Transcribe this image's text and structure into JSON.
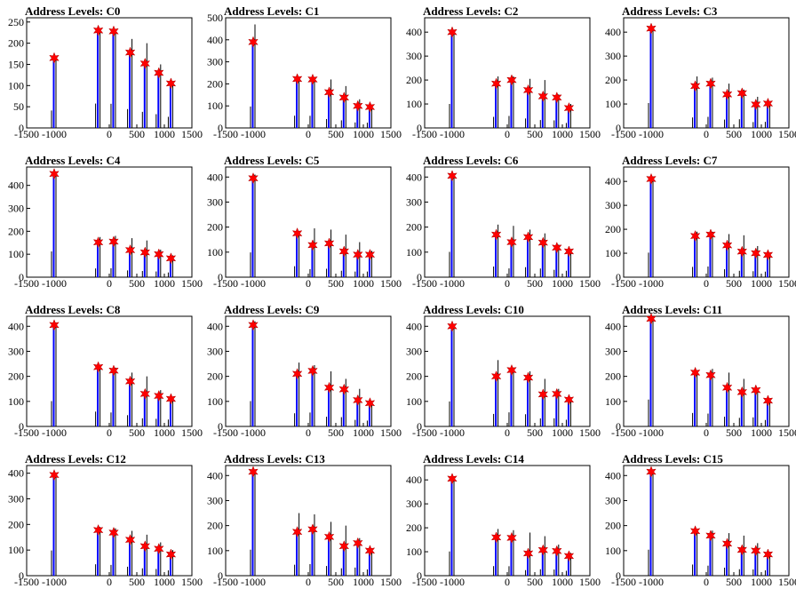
{
  "colors": {
    "spike": "#0000ff",
    "baseline_spike": "#000000",
    "marker": "#ff0000"
  },
  "chart_data": [
    {
      "type": "bar",
      "title": "Address Levels: C0",
      "xlim": [
        -1500,
        1500
      ],
      "ylim": [
        0,
        260
      ],
      "xticks": [
        "-1500",
        "-1000",
        "0",
        "500",
        "1000",
        "1500"
      ],
      "yticks": [
        "0",
        "50",
        "100",
        "150",
        "200",
        "250"
      ],
      "peaks": [
        {
          "x": -1000,
          "y": 165,
          "spike": 170
        },
        {
          "x": -200,
          "y": 230,
          "spike": 225
        },
        {
          "x": 80,
          "y": 228,
          "spike": 225
        },
        {
          "x": 380,
          "y": 178,
          "spike": 210
        },
        {
          "x": 650,
          "y": 152,
          "spike": 200
        },
        {
          "x": 900,
          "y": 130,
          "spike": 150
        },
        {
          "x": 1120,
          "y": 105,
          "spike": 110
        }
      ]
    },
    {
      "type": "bar",
      "title": "Address Levels: C1",
      "xlim": [
        -1500,
        1500
      ],
      "ylim": [
        0,
        500
      ],
      "xticks": [
        "-1500",
        "-1000",
        "0",
        "500",
        "1000",
        "1500"
      ],
      "yticks": [
        "0",
        "100",
        "200",
        "300",
        "400",
        "500"
      ],
      "peaks": [
        {
          "x": -1000,
          "y": 390,
          "spike": 470
        },
        {
          "x": -200,
          "y": 222,
          "spike": 225
        },
        {
          "x": 80,
          "y": 220,
          "spike": 225
        },
        {
          "x": 380,
          "y": 162,
          "spike": 220
        },
        {
          "x": 650,
          "y": 138,
          "spike": 190
        },
        {
          "x": 900,
          "y": 100,
          "spike": 130
        },
        {
          "x": 1120,
          "y": 95,
          "spike": 100
        }
      ]
    },
    {
      "type": "bar",
      "title": "Address Levels: C2",
      "xlim": [
        -1500,
        1500
      ],
      "ylim": [
        0,
        460
      ],
      "xticks": [
        "-1500",
        "-1000",
        "0",
        "500",
        "1000",
        "1500"
      ],
      "yticks": [
        "0",
        "100",
        "200",
        "300",
        "400"
      ],
      "peaks": [
        {
          "x": -1000,
          "y": 400,
          "spike": 410
        },
        {
          "x": -200,
          "y": 185,
          "spike": 215
        },
        {
          "x": 80,
          "y": 200,
          "spike": 215
        },
        {
          "x": 380,
          "y": 158,
          "spike": 205
        },
        {
          "x": 650,
          "y": 132,
          "spike": 200
        },
        {
          "x": 900,
          "y": 127,
          "spike": 140
        },
        {
          "x": 1120,
          "y": 83,
          "spike": 100
        }
      ]
    },
    {
      "type": "bar",
      "title": "Address Levels: C3",
      "xlim": [
        -1500,
        1500
      ],
      "ylim": [
        0,
        460
      ],
      "xticks": [
        "-1500",
        "-1000",
        "0",
        "500",
        "1000",
        "1500"
      ],
      "yticks": [
        "0",
        "100",
        "200",
        "300",
        "400"
      ],
      "peaks": [
        {
          "x": -1000,
          "y": 415,
          "spike": 420
        },
        {
          "x": -200,
          "y": 175,
          "spike": 215
        },
        {
          "x": 80,
          "y": 185,
          "spike": 210
        },
        {
          "x": 380,
          "y": 140,
          "spike": 185
        },
        {
          "x": 650,
          "y": 145,
          "spike": 160
        },
        {
          "x": 900,
          "y": 98,
          "spike": 130
        },
        {
          "x": 1120,
          "y": 102,
          "spike": 105
        }
      ]
    },
    {
      "type": "bar",
      "title": "Address Levels: C4",
      "xlim": [
        -1500,
        1500
      ],
      "ylim": [
        0,
        480
      ],
      "xticks": [
        "-1500",
        "-1000",
        "0",
        "500",
        "1000",
        "1500"
      ],
      "yticks": [
        "0",
        "100",
        "200",
        "300",
        "400"
      ],
      "peaks": [
        {
          "x": -1000,
          "y": 450,
          "spike": 455
        },
        {
          "x": -200,
          "y": 152,
          "spike": 175
        },
        {
          "x": 80,
          "y": 155,
          "spike": 180
        },
        {
          "x": 380,
          "y": 118,
          "spike": 170
        },
        {
          "x": 650,
          "y": 108,
          "spike": 160
        },
        {
          "x": 900,
          "y": 100,
          "spike": 120
        },
        {
          "x": 1120,
          "y": 82,
          "spike": 95
        }
      ]
    },
    {
      "type": "bar",
      "title": "Address Levels: C5",
      "xlim": [
        -1500,
        1500
      ],
      "ylim": [
        0,
        440
      ],
      "xticks": [
        "-1500",
        "-1000",
        "0",
        "500",
        "1000",
        "1500"
      ],
      "yticks": [
        "0",
        "100",
        "200",
        "300",
        "400"
      ],
      "peaks": [
        {
          "x": -1000,
          "y": 395,
          "spike": 410
        },
        {
          "x": -200,
          "y": 175,
          "spike": 185
        },
        {
          "x": 80,
          "y": 128,
          "spike": 195
        },
        {
          "x": 380,
          "y": 135,
          "spike": 190
        },
        {
          "x": 650,
          "y": 103,
          "spike": 170
        },
        {
          "x": 900,
          "y": 90,
          "spike": 140
        },
        {
          "x": 1120,
          "y": 90,
          "spike": 105
        }
      ]
    },
    {
      "type": "bar",
      "title": "Address Levels: C6",
      "xlim": [
        -1500,
        1500
      ],
      "ylim": [
        0,
        440
      ],
      "xticks": [
        "-1500",
        "-1000",
        "0",
        "500",
        "1000",
        "1500"
      ],
      "yticks": [
        "0",
        "100",
        "200",
        "300",
        "400"
      ],
      "peaks": [
        {
          "x": -1000,
          "y": 405,
          "spike": 410
        },
        {
          "x": -200,
          "y": 170,
          "spike": 210
        },
        {
          "x": 80,
          "y": 140,
          "spike": 205
        },
        {
          "x": 380,
          "y": 160,
          "spike": 190
        },
        {
          "x": 650,
          "y": 138,
          "spike": 175
        },
        {
          "x": 900,
          "y": 118,
          "spike": 130
        },
        {
          "x": 1120,
          "y": 103,
          "spike": 110
        }
      ]
    },
    {
      "type": "bar",
      "title": "Address Levels: C7",
      "xlim": [
        -1500,
        1500
      ],
      "ylim": [
        0,
        460
      ],
      "xticks": [
        "-1500",
        "-1000",
        "0",
        "500",
        "1000",
        "1500"
      ],
      "yticks": [
        "0",
        "100",
        "200",
        "300",
        "400"
      ],
      "peaks": [
        {
          "x": -1000,
          "y": 410,
          "spike": 420
        },
        {
          "x": -200,
          "y": 172,
          "spike": 190
        },
        {
          "x": 80,
          "y": 178,
          "spike": 190
        },
        {
          "x": 380,
          "y": 133,
          "spike": 180
        },
        {
          "x": 650,
          "y": 107,
          "spike": 175
        },
        {
          "x": 900,
          "y": 100,
          "spike": 130
        },
        {
          "x": 1120,
          "y": 93,
          "spike": 100
        }
      ]
    },
    {
      "type": "bar",
      "title": "Address Levels: C8",
      "xlim": [
        -1500,
        1500
      ],
      "ylim": [
        0,
        440
      ],
      "xticks": [
        "-1500",
        "-1000",
        "0",
        "500",
        "1000",
        "1500"
      ],
      "yticks": [
        "0",
        "100",
        "200",
        "300",
        "400"
      ],
      "peaks": [
        {
          "x": -1000,
          "y": 405,
          "spike": 415
        },
        {
          "x": -200,
          "y": 237,
          "spike": 240
        },
        {
          "x": 80,
          "y": 223,
          "spike": 235
        },
        {
          "x": 380,
          "y": 180,
          "spike": 215
        },
        {
          "x": 650,
          "y": 130,
          "spike": 200
        },
        {
          "x": 900,
          "y": 122,
          "spike": 145
        },
        {
          "x": 1120,
          "y": 110,
          "spike": 115
        }
      ]
    },
    {
      "type": "bar",
      "title": "Address Levels: C9",
      "xlim": [
        -1500,
        1500
      ],
      "ylim": [
        0,
        440
      ],
      "xticks": [
        "-1500",
        "-1000",
        "0",
        "500",
        "1000",
        "1500"
      ],
      "yticks": [
        "0",
        "100",
        "200",
        "300",
        "400"
      ],
      "peaks": [
        {
          "x": -1000,
          "y": 405,
          "spike": 420
        },
        {
          "x": -200,
          "y": 210,
          "spike": 255
        },
        {
          "x": 80,
          "y": 222,
          "spike": 245
        },
        {
          "x": 380,
          "y": 155,
          "spike": 220
        },
        {
          "x": 650,
          "y": 148,
          "spike": 190
        },
        {
          "x": 900,
          "y": 105,
          "spike": 150
        },
        {
          "x": 1120,
          "y": 93,
          "spike": 100
        }
      ]
    },
    {
      "type": "bar",
      "title": "Address Levels: C10",
      "xlim": [
        -1500,
        1500
      ],
      "ylim": [
        0,
        440
      ],
      "xticks": [
        "-1500",
        "-1000",
        "0",
        "500",
        "1000",
        "1500"
      ],
      "yticks": [
        "0",
        "100",
        "200",
        "300",
        "400"
      ],
      "peaks": [
        {
          "x": -1000,
          "y": 400,
          "spike": 410
        },
        {
          "x": -200,
          "y": 200,
          "spike": 265
        },
        {
          "x": 80,
          "y": 225,
          "spike": 235
        },
        {
          "x": 380,
          "y": 195,
          "spike": 220
        },
        {
          "x": 650,
          "y": 128,
          "spike": 190
        },
        {
          "x": 900,
          "y": 130,
          "spike": 150
        },
        {
          "x": 1120,
          "y": 107,
          "spike": 115
        }
      ]
    },
    {
      "type": "bar",
      "title": "Address Levels: C11",
      "xlim": [
        -1500,
        1500
      ],
      "ylim": [
        0,
        440
      ],
      "xticks": [
        "-1500",
        "-1000",
        "0",
        "500",
        "1000",
        "1500"
      ],
      "yticks": [
        "0",
        "100",
        "200",
        "300",
        "400"
      ],
      "peaks": [
        {
          "x": -1000,
          "y": 430,
          "spike": 440
        },
        {
          "x": -200,
          "y": 215,
          "spike": 220
        },
        {
          "x": 80,
          "y": 205,
          "spike": 230
        },
        {
          "x": 380,
          "y": 155,
          "spike": 215
        },
        {
          "x": 650,
          "y": 137,
          "spike": 190
        },
        {
          "x": 900,
          "y": 145,
          "spike": 150
        },
        {
          "x": 1120,
          "y": 103,
          "spike": 110
        }
      ]
    },
    {
      "type": "bar",
      "title": "Address Levels: C12",
      "xlim": [
        -1500,
        1500
      ],
      "ylim": [
        0,
        430
      ],
      "xticks": [
        "-1500",
        "-1000",
        "0",
        "500",
        "1000",
        "1500"
      ],
      "yticks": [
        "0",
        "100",
        "200",
        "300",
        "400"
      ],
      "peaks": [
        {
          "x": -1000,
          "y": 393,
          "spike": 400
        },
        {
          "x": -200,
          "y": 178,
          "spike": 190
        },
        {
          "x": 80,
          "y": 168,
          "spike": 185
        },
        {
          "x": 380,
          "y": 140,
          "spike": 175
        },
        {
          "x": 650,
          "y": 115,
          "spike": 160
        },
        {
          "x": 900,
          "y": 105,
          "spike": 130
        },
        {
          "x": 1120,
          "y": 83,
          "spike": 100
        }
      ]
    },
    {
      "type": "bar",
      "title": "Address Levels: C13",
      "xlim": [
        -1500,
        1500
      ],
      "ylim": [
        0,
        440
      ],
      "xticks": [
        "-1500",
        "-1000",
        "0",
        "500",
        "1000",
        "1500"
      ],
      "yticks": [
        "0",
        "100",
        "200",
        "300",
        "400"
      ],
      "peaks": [
        {
          "x": -1000,
          "y": 415,
          "spike": 420
        },
        {
          "x": -200,
          "y": 175,
          "spike": 250
        },
        {
          "x": 80,
          "y": 185,
          "spike": 245
        },
        {
          "x": 380,
          "y": 155,
          "spike": 215
        },
        {
          "x": 650,
          "y": 118,
          "spike": 200
        },
        {
          "x": 900,
          "y": 130,
          "spike": 150
        },
        {
          "x": 1120,
          "y": 100,
          "spike": 110
        }
      ]
    },
    {
      "type": "bar",
      "title": "Address Levels: C14",
      "xlim": [
        -1500,
        1500
      ],
      "ylim": [
        0,
        460
      ],
      "xticks": [
        "-1500",
        "-1000",
        "0",
        "500",
        "1000",
        "1500"
      ],
      "yticks": [
        "0",
        "100",
        "200",
        "300",
        "400"
      ],
      "peaks": [
        {
          "x": -1000,
          "y": 405,
          "spike": 410
        },
        {
          "x": -200,
          "y": 160,
          "spike": 195
        },
        {
          "x": 80,
          "y": 158,
          "spike": 190
        },
        {
          "x": 380,
          "y": 93,
          "spike": 180
        },
        {
          "x": 650,
          "y": 107,
          "spike": 165
        },
        {
          "x": 900,
          "y": 103,
          "spike": 130
        },
        {
          "x": 1120,
          "y": 82,
          "spike": 95
        }
      ]
    },
    {
      "type": "bar",
      "title": "Address Levels: C15",
      "xlim": [
        -1500,
        1500
      ],
      "ylim": [
        0,
        440
      ],
      "xticks": [
        "-1500",
        "-1000",
        "0",
        "500",
        "1000",
        "1500"
      ],
      "yticks": [
        "0",
        "100",
        "200",
        "300",
        "400"
      ],
      "peaks": [
        {
          "x": -1000,
          "y": 415,
          "spike": 420
        },
        {
          "x": -200,
          "y": 178,
          "spike": 185
        },
        {
          "x": 80,
          "y": 160,
          "spike": 180
        },
        {
          "x": 380,
          "y": 128,
          "spike": 170
        },
        {
          "x": 650,
          "y": 103,
          "spike": 160
        },
        {
          "x": 900,
          "y": 100,
          "spike": 130
        },
        {
          "x": 1120,
          "y": 85,
          "spike": 95
        }
      ]
    }
  ]
}
